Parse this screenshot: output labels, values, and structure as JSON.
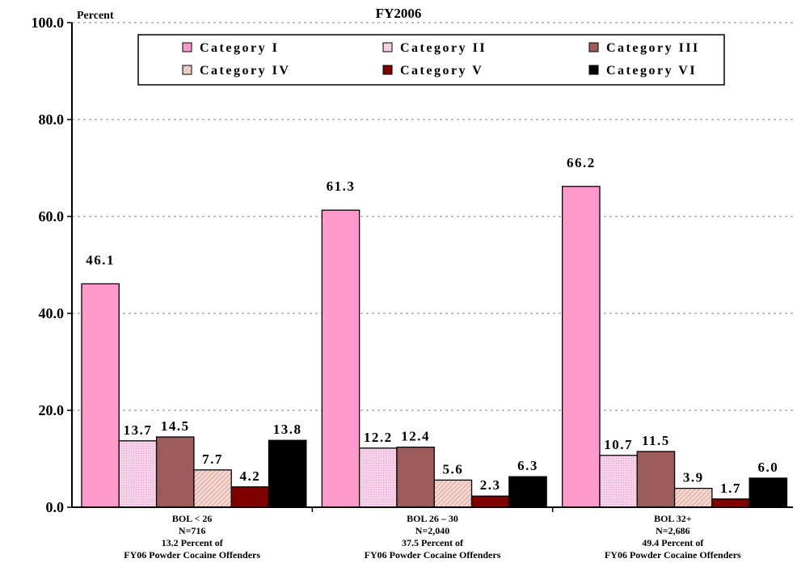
{
  "chart_data": {
    "type": "bar",
    "title": "FY2006",
    "ylabel": "Percent",
    "ylim": [
      0,
      100
    ],
    "yticks": [
      "0.0",
      "20.0",
      "40.0",
      "60.0",
      "80.0",
      "100.0"
    ],
    "grid": true,
    "legend_position": "top",
    "categories": [
      [
        "BOL < 26",
        "N=716",
        "13.2 Percent of",
        "FY06 Powder Cocaine Offenders"
      ],
      [
        "BOL 26 – 30",
        "N=2,040",
        "37.5 Percent of",
        "FY06 Powder Cocaine Offenders"
      ],
      [
        "BOL 32+",
        "N=2,686",
        "49.4 Percent of",
        "FY06 Powder Cocaine Offenders"
      ]
    ],
    "series": [
      {
        "name": "Category I",
        "color": "#ff99cc",
        "pattern": "solid",
        "values": [
          46.1,
          61.3,
          66.2
        ],
        "labels": [
          "46.1",
          "61.3",
          "66.2"
        ]
      },
      {
        "name": "Category II",
        "color": "#ffccee",
        "pattern": "dots",
        "values": [
          13.7,
          12.2,
          10.7
        ],
        "labels": [
          "13.7",
          "12.2",
          "10.7"
        ]
      },
      {
        "name": "Category III",
        "color": "#9c5c5c",
        "pattern": "solid",
        "values": [
          14.5,
          12.4,
          11.5
        ],
        "labels": [
          "14.5",
          "12.4",
          "11.5"
        ]
      },
      {
        "name": "Category IV",
        "color": "#f4c4c4",
        "pattern": "hatch",
        "values": [
          7.7,
          5.6,
          3.9
        ],
        "labels": [
          "7.7",
          "5.6",
          "3.9"
        ]
      },
      {
        "name": "Category V",
        "color": "#800000",
        "pattern": "solid",
        "values": [
          4.2,
          2.3,
          1.7
        ],
        "labels": [
          "4.2",
          "2.3",
          "1.7"
        ]
      },
      {
        "name": "Category VI",
        "color": "#000000",
        "pattern": "solid",
        "values": [
          13.8,
          6.3,
          6.0
        ],
        "labels": [
          "13.8",
          "6.3",
          "6.0"
        ]
      }
    ]
  }
}
